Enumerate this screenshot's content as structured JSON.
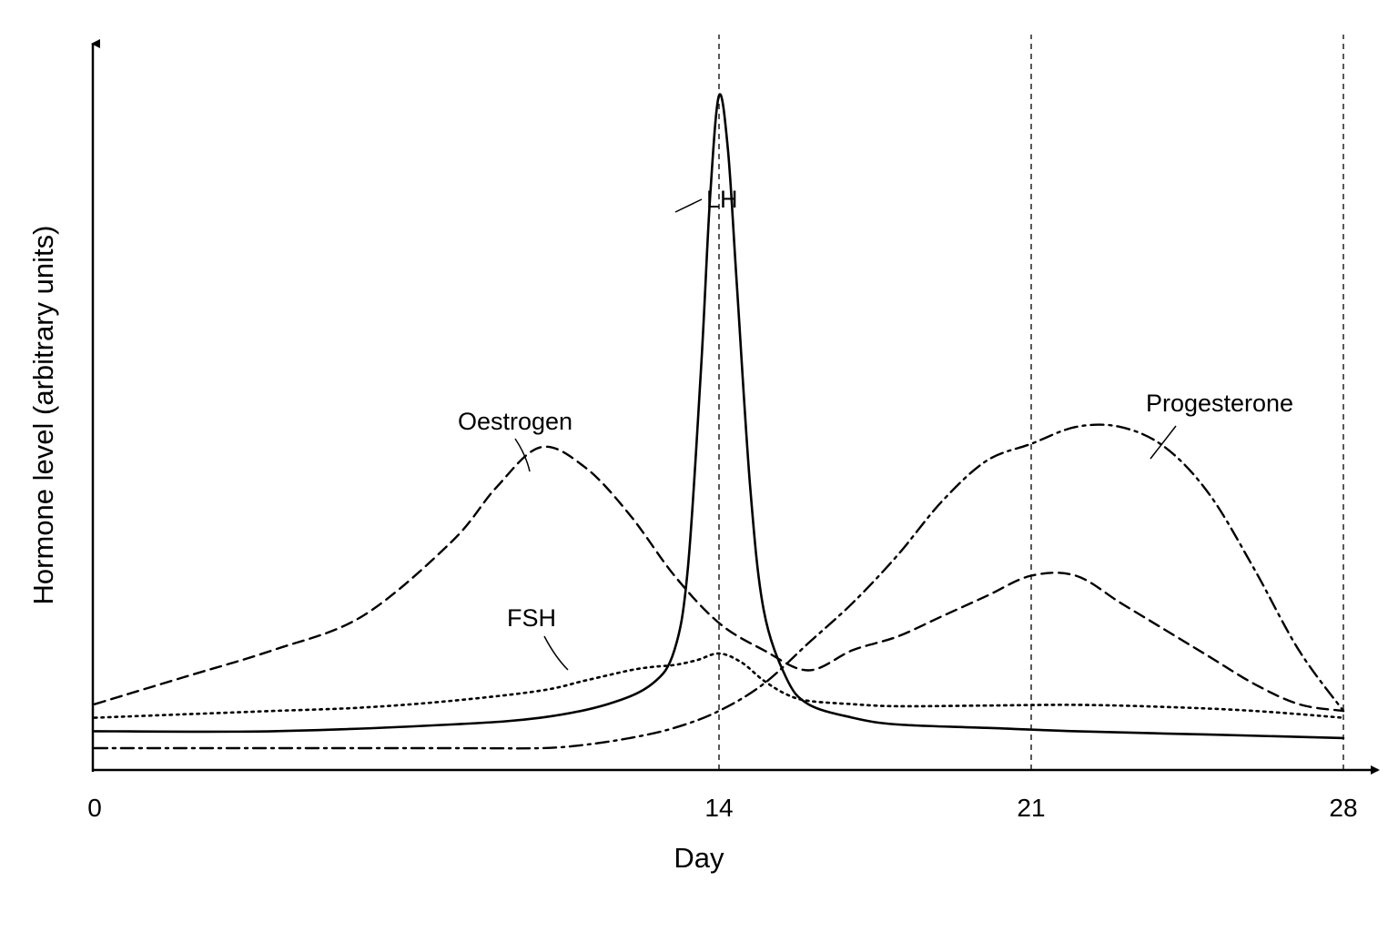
{
  "chart_data": {
    "type": "line",
    "xlabel": "Day",
    "ylabel": "Hormone level (arbitrary units)",
    "xlim": [
      0,
      28
    ],
    "ylim": [
      0,
      100
    ],
    "x_ticks": [
      "0",
      "14",
      "21",
      "28"
    ],
    "reference_lines_x": [
      14,
      21,
      28
    ],
    "series": [
      {
        "name": "LH",
        "style": "solid",
        "x": [
          0,
          4,
          8,
          10,
          11.5,
          12.5,
          13,
          13.3,
          13.6,
          13.8,
          14,
          14.2,
          14.4,
          14.7,
          15,
          15.5,
          16,
          17,
          18,
          20,
          22,
          25,
          28
        ],
        "y": [
          6,
          6,
          7,
          8,
          10,
          13,
          18,
          30,
          60,
          85,
          100,
          92,
          72,
          42,
          24,
          14,
          10,
          8,
          7,
          6.5,
          6,
          5.5,
          5
        ]
      },
      {
        "name": "Oestrogen",
        "style": "dashed",
        "x": [
          0,
          2,
          4,
          6,
          8,
          9,
          10,
          11,
          12,
          13,
          14,
          15,
          16,
          17,
          18,
          19,
          20,
          21,
          22,
          23,
          24,
          25,
          26,
          27,
          28
        ],
        "y": [
          10,
          14,
          18,
          23,
          34,
          42,
          48,
          45,
          38,
          29,
          22,
          18,
          15,
          18,
          20,
          23,
          26,
          29,
          29,
          25,
          21,
          17,
          13,
          10,
          9
        ]
      },
      {
        "name": "FSH",
        "style": "dotted",
        "x": [
          0,
          2,
          4,
          6,
          8,
          10,
          11,
          12,
          12.5,
          13,
          13.5,
          14,
          14.5,
          15,
          15.5,
          16,
          17,
          18,
          20,
          22,
          24,
          26,
          28
        ],
        "y": [
          8,
          8.5,
          9,
          9.5,
          10.5,
          12,
          13.5,
          15,
          15.5,
          15.8,
          16.5,
          17.5,
          16.2,
          13.5,
          11.5,
          10.5,
          10,
          9.7,
          9.8,
          9.9,
          9.6,
          9,
          8
        ]
      },
      {
        "name": "Progesterone",
        "style": "dash-dot",
        "x": [
          0,
          4,
          8,
          10,
          11,
          12,
          13,
          14,
          15,
          16,
          17,
          18,
          19,
          20,
          21,
          22,
          23,
          24,
          25,
          26,
          27,
          28
        ],
        "y": [
          3.5,
          3.5,
          3.5,
          3.5,
          4,
          5,
          6.5,
          9,
          13,
          19,
          25,
          32,
          40,
          46,
          48.5,
          51,
          51,
          48,
          41,
          30,
          18,
          9
        ]
      }
    ]
  }
}
